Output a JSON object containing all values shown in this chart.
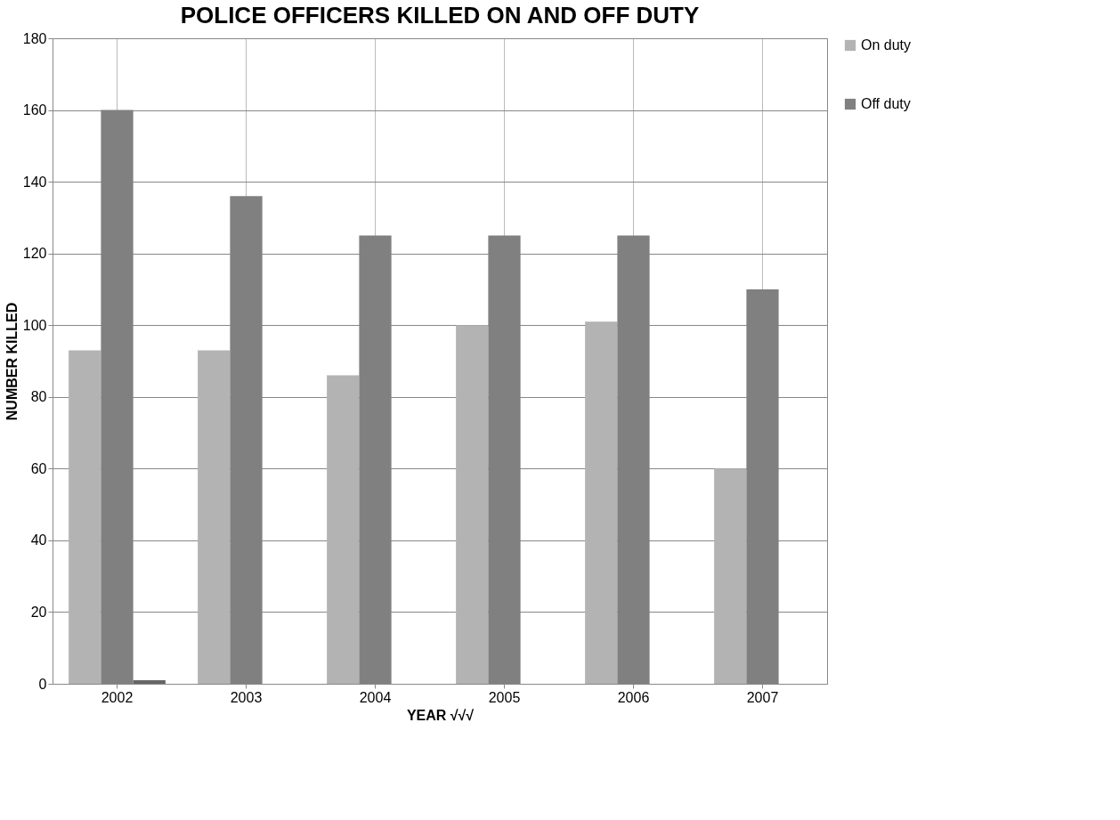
{
  "chart_data": {
    "type": "bar",
    "title": "POLICE OFFICERS KILLED ON AND OFF DUTY",
    "xlabel": "YEAR √√√",
    "ylabel": "NUMBER KILLED",
    "categories": [
      "2002",
      "2003",
      "2004",
      "2005",
      "2006",
      "2007"
    ],
    "series": [
      {
        "name": "On duty",
        "color": "#b3b3b3",
        "values": [
          93,
          93,
          86,
          100,
          101,
          60
        ]
      },
      {
        "name": "Off duty",
        "color": "#808080",
        "values": [
          160,
          136,
          125,
          125,
          125,
          110
        ]
      },
      {
        "color": "#666666",
        "values": [
          1,
          null,
          null,
          null,
          null,
          null
        ]
      }
    ],
    "ylim": [
      0,
      180
    ],
    "yticks": [
      0,
      20,
      40,
      60,
      80,
      100,
      120,
      140,
      160,
      180
    ],
    "grid": true,
    "legend": "right"
  }
}
